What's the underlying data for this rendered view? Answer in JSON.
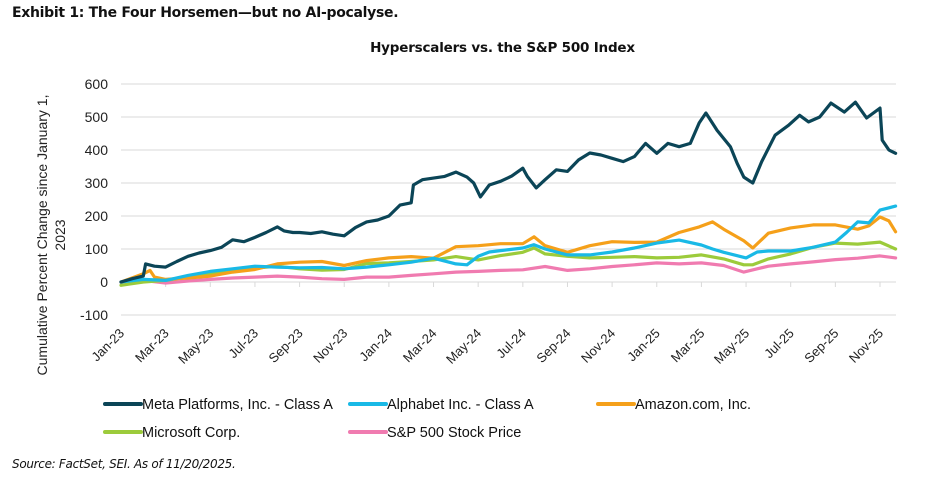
{
  "exhibit_title": "Exhibit 1: The Four Horsemen—but no AI-pocalyse.",
  "source_note": "Source: FactSet, SEI. As of 11/20/2025.",
  "chart_data": {
    "type": "line",
    "title": "Hyperscalers vs. the S&P 500 Index",
    "xlabel": "",
    "ylabel": "Cumulative Percent Change since January 1, 2023",
    "ylabel_lines": [
      "Cumulative Percent Change since January 1,",
      "2023"
    ],
    "ylim": [
      -100,
      600
    ],
    "yticks": [
      -100,
      0,
      100,
      200,
      300,
      400,
      500,
      600
    ],
    "grid": true,
    "legend_position": "bottom",
    "x_unit": "months since Jan-23",
    "xlim": [
      0,
      34.7
    ],
    "xtick_positions": [
      0,
      2,
      4,
      6,
      8,
      10,
      12,
      14,
      16,
      18,
      20,
      22,
      24,
      26,
      28,
      30,
      32,
      34
    ],
    "xtick_labels": [
      "Jan-23",
      "Mar-23",
      "May-23",
      "Jul-23",
      "Sep-23",
      "Nov-23",
      "Jan-24",
      "Mar-24",
      "May-24",
      "Jul-24",
      "Sep-24",
      "Nov-24",
      "Jan-25",
      "Mar-25",
      "May-25",
      "Jul-25",
      "Sep-25",
      "Nov-25"
    ],
    "series": [
      {
        "name": "Meta Platforms, Inc. - Class A",
        "color": "#0b4557",
        "x": [
          0,
          0.5,
          1.0,
          1.1,
          1.5,
          2.0,
          2.5,
          3.0,
          3.5,
          4.0,
          4.5,
          5.0,
          5.5,
          6.0,
          6.5,
          7.0,
          7.3,
          7.7,
          8.0,
          8.5,
          9.0,
          9.5,
          10.0,
          10.5,
          11.0,
          11.5,
          12.0,
          12.5,
          13.0,
          13.1,
          13.5,
          14.0,
          14.5,
          15.0,
          15.5,
          15.8,
          16.1,
          16.5,
          17.0,
          17.5,
          18.0,
          18.2,
          18.6,
          19.0,
          19.5,
          20.0,
          20.5,
          21.0,
          21.5,
          22.0,
          22.5,
          23.0,
          23.5,
          24.0,
          24.5,
          25.0,
          25.5,
          25.9,
          26.2,
          26.7,
          27.3,
          27.6,
          27.9,
          28.3,
          28.7,
          29.3,
          29.9,
          30.4,
          30.8,
          31.3,
          31.8,
          32.4,
          32.9,
          33.4,
          34.0,
          34.1,
          34.4,
          34.7
        ],
        "values": [
          0,
          10,
          18,
          55,
          48,
          45,
          62,
          78,
          88,
          95,
          105,
          128,
          122,
          135,
          150,
          167,
          155,
          150,
          150,
          147,
          152,
          145,
          140,
          165,
          182,
          188,
          200,
          233,
          240,
          294,
          310,
          315,
          320,
          333,
          318,
          300,
          258,
          294,
          305,
          321,
          345,
          320,
          285,
          310,
          340,
          335,
          370,
          391,
          385,
          375,
          365,
          380,
          420,
          390,
          420,
          410,
          420,
          482,
          512,
          460,
          410,
          360,
          318,
          300,
          365,
          445,
          475,
          505,
          485,
          500,
          542,
          515,
          545,
          497,
          527,
          430,
          400,
          390
        ]
      },
      {
        "name": "Alphabet Inc. - Class A",
        "color": "#19b9e6",
        "x": [
          0,
          1,
          2,
          3,
          4,
          5,
          6,
          7,
          8,
          9,
          10,
          11,
          12,
          13,
          14,
          15,
          15.5,
          16,
          16.5,
          17,
          18,
          18.5,
          19,
          20,
          21,
          22,
          23,
          24,
          25,
          26,
          26.5,
          27,
          28,
          28.5,
          29,
          30,
          31,
          32,
          32.5,
          33,
          33.5,
          34,
          34.7
        ],
        "values": [
          0,
          8,
          5,
          20,
          32,
          40,
          48,
          45,
          43,
          44,
          40,
          45,
          52,
          60,
          72,
          55,
          52,
          78,
          91,
          95,
          103,
          113,
          100,
          82,
          82,
          91,
          103,
          118,
          127,
          112,
          100,
          90,
          73,
          91,
          94,
          94,
          105,
          121,
          150,
          182,
          179,
          218,
          230
        ]
      },
      {
        "name": "Amazon.com, Inc.",
        "color": "#f5a01a",
        "x": [
          0,
          1,
          1.3,
          1.5,
          2,
          3,
          4,
          5,
          6,
          7,
          8,
          9,
          10,
          11,
          12,
          13,
          14,
          15,
          16,
          17,
          18,
          18.5,
          19,
          20,
          21,
          22,
          23,
          24,
          25,
          25.9,
          26.5,
          27,
          27.9,
          28.3,
          29,
          30,
          31,
          32,
          33,
          33.5,
          34,
          34.4,
          34.7
        ],
        "values": [
          0,
          25,
          35,
          15,
          8,
          12,
          18,
          30,
          38,
          55,
          60,
          62,
          50,
          65,
          73,
          77,
          72,
          107,
          110,
          116,
          116,
          137,
          110,
          90,
          110,
          122,
          120,
          121,
          150,
          167,
          182,
          160,
          125,
          103,
          148,
          164,
          173,
          173,
          160,
          170,
          197,
          185,
          152
        ]
      },
      {
        "name": "Microsoft Corp.",
        "color": "#9ccb3b",
        "x": [
          0,
          1,
          2,
          3,
          4,
          5,
          6,
          7,
          8,
          9,
          10,
          11,
          12,
          13,
          14,
          15,
          16,
          17,
          18,
          18.5,
          19,
          20,
          21,
          22,
          23,
          24,
          25,
          26,
          27,
          27.9,
          28.3,
          29,
          30,
          31,
          32,
          33,
          34,
          34.7
        ],
        "values": [
          -10,
          0,
          5,
          15,
          25,
          35,
          42,
          48,
          40,
          36,
          38,
          56,
          58,
          62,
          67,
          77,
          67,
          80,
          90,
          103,
          85,
          78,
          73,
          75,
          77,
          73,
          75,
          82,
          70,
          52,
          52,
          70,
          85,
          105,
          118,
          115,
          121,
          100
        ]
      },
      {
        "name": "S&P 500 Stock Price",
        "color": "#f07bb0",
        "x": [
          0,
          1,
          2,
          3,
          4,
          5,
          6,
          7,
          8,
          9,
          10,
          11,
          12,
          13,
          14,
          15,
          16,
          17,
          18,
          19,
          20,
          21,
          22,
          23,
          24,
          25,
          26,
          27,
          27.9,
          28.5,
          29,
          30,
          31,
          32,
          33,
          34,
          34.7
        ],
        "values": [
          0,
          5,
          -3,
          3,
          8,
          12,
          15,
          18,
          15,
          10,
          8,
          15,
          15,
          20,
          25,
          30,
          32,
          35,
          37,
          47,
          35,
          40,
          47,
          52,
          58,
          55,
          58,
          50,
          30,
          40,
          48,
          55,
          61,
          68,
          72,
          79,
          73
        ]
      }
    ]
  }
}
